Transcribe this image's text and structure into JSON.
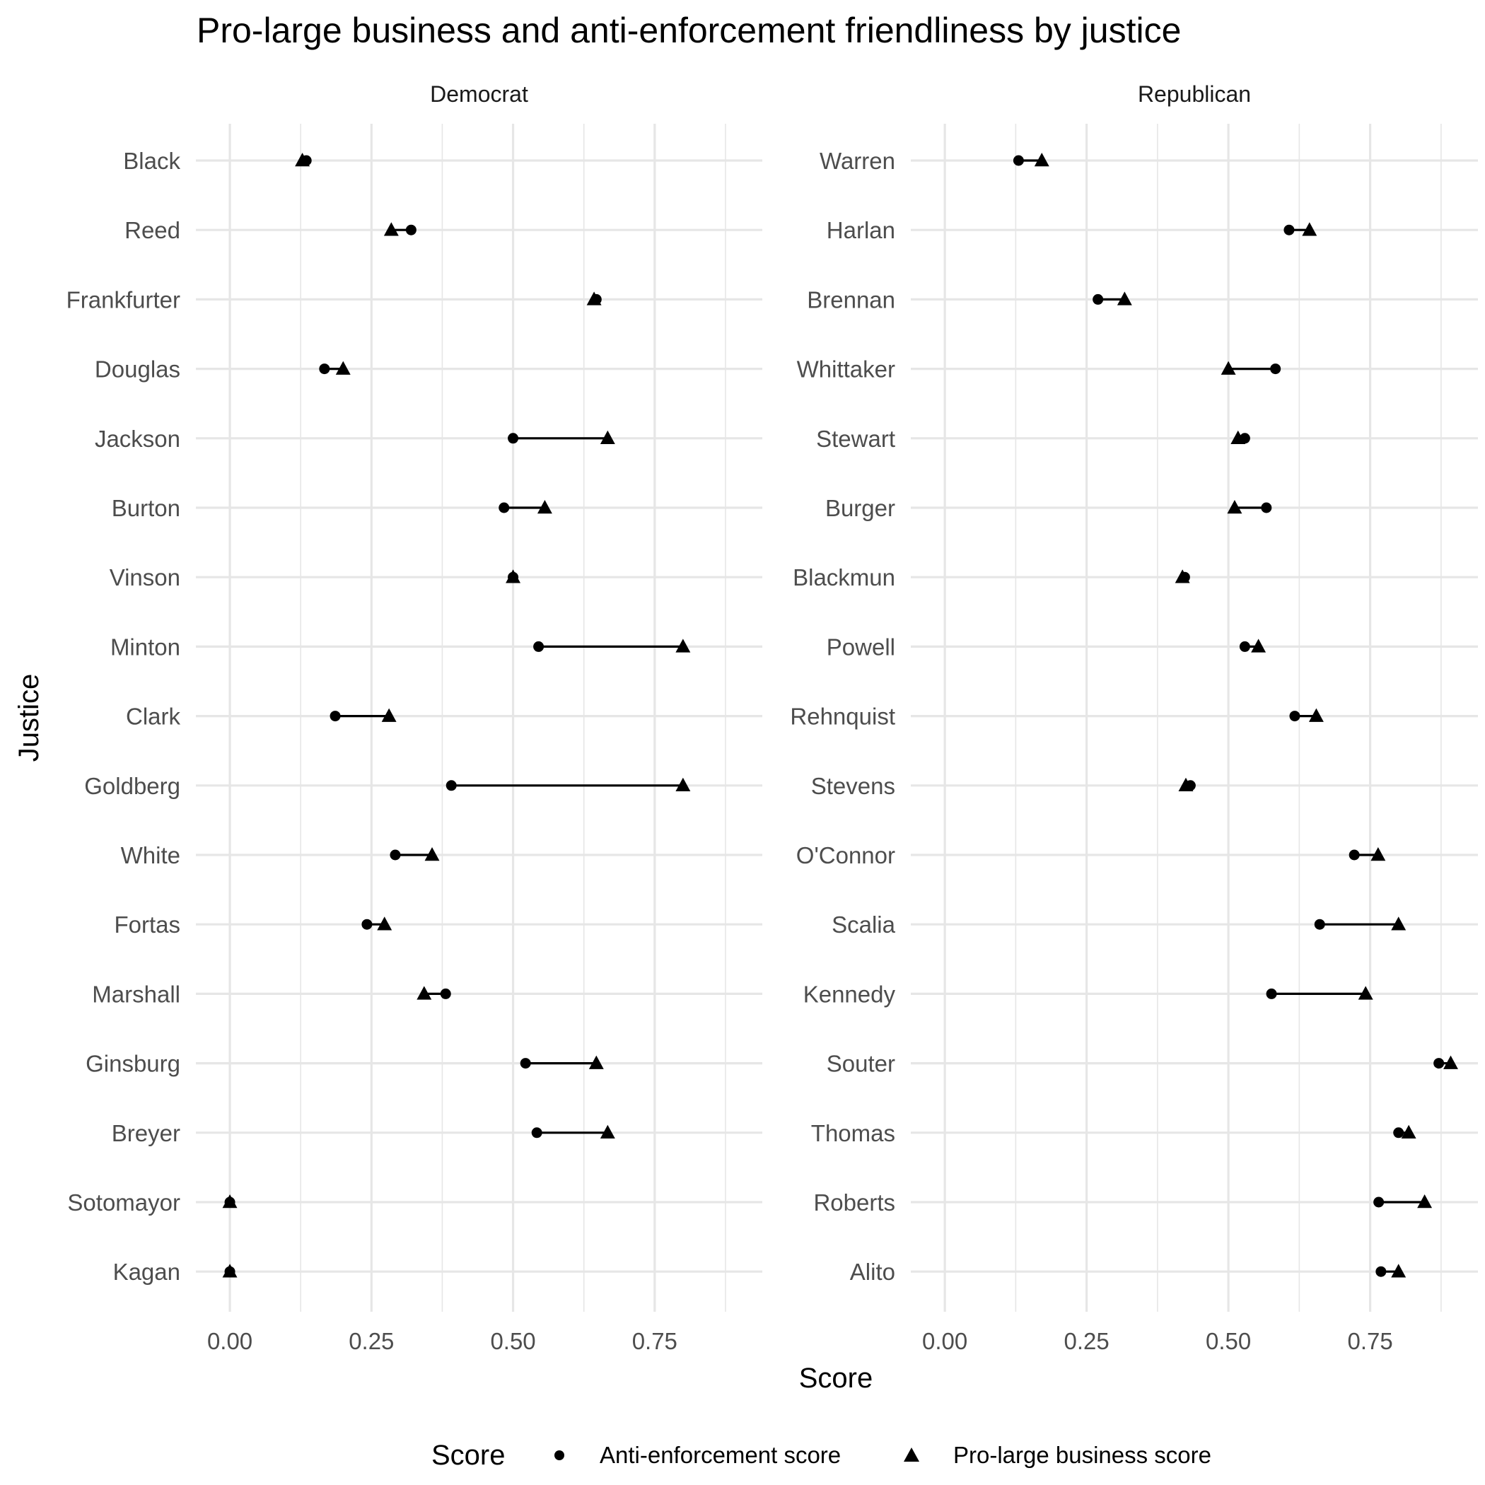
{
  "chart_data": {
    "type": "dot-range",
    "title": "Pro-large business and anti-enforcement friendliness by justice",
    "xlabel": "Score",
    "ylabel": "Justice",
    "xlim": [
      -0.06,
      0.94
    ],
    "x_ticks": [
      0,
      0.25,
      0.5,
      0.75
    ],
    "x_tick_labels": [
      "0.00",
      "0.25",
      "0.50",
      "0.75"
    ],
    "grid": true,
    "legend": {
      "title": "Score",
      "position": "bottom",
      "entries": [
        {
          "label": "Anti-enforcement score",
          "shape": "circle"
        },
        {
          "label": "Pro-large business score",
          "shape": "triangle"
        }
      ]
    },
    "panels": [
      {
        "label": "Democrat",
        "justices": [
          {
            "name": "Black",
            "anti_enforcement": 0.135,
            "pro_business": 0.128
          },
          {
            "name": "Reed",
            "anti_enforcement": 0.32,
            "pro_business": 0.285
          },
          {
            "name": "Frankfurter",
            "anti_enforcement": 0.647,
            "pro_business": 0.643
          },
          {
            "name": "Douglas",
            "anti_enforcement": 0.167,
            "pro_business": 0.2
          },
          {
            "name": "Jackson",
            "anti_enforcement": 0.5,
            "pro_business": 0.667
          },
          {
            "name": "Burton",
            "anti_enforcement": 0.484,
            "pro_business": 0.556
          },
          {
            "name": "Vinson",
            "anti_enforcement": 0.5,
            "pro_business": 0.5
          },
          {
            "name": "Minton",
            "anti_enforcement": 0.545,
            "pro_business": 0.8
          },
          {
            "name": "Clark",
            "anti_enforcement": 0.186,
            "pro_business": 0.281
          },
          {
            "name": "Goldberg",
            "anti_enforcement": 0.391,
            "pro_business": 0.8
          },
          {
            "name": "White",
            "anti_enforcement": 0.292,
            "pro_business": 0.357
          },
          {
            "name": "Fortas",
            "anti_enforcement": 0.242,
            "pro_business": 0.273
          },
          {
            "name": "Marshall",
            "anti_enforcement": 0.381,
            "pro_business": 0.343
          },
          {
            "name": "Ginsburg",
            "anti_enforcement": 0.522,
            "pro_business": 0.647
          },
          {
            "name": "Breyer",
            "anti_enforcement": 0.542,
            "pro_business": 0.667
          },
          {
            "name": "Sotomayor",
            "anti_enforcement": 0.0,
            "pro_business": 0.0
          },
          {
            "name": "Kagan",
            "anti_enforcement": 0.0,
            "pro_business": 0.0
          }
        ]
      },
      {
        "label": "Republican",
        "justices": [
          {
            "name": "Warren",
            "anti_enforcement": 0.13,
            "pro_business": 0.171
          },
          {
            "name": "Harlan",
            "anti_enforcement": 0.607,
            "pro_business": 0.643
          },
          {
            "name": "Brennan",
            "anti_enforcement": 0.27,
            "pro_business": 0.317
          },
          {
            "name": "Whittaker",
            "anti_enforcement": 0.583,
            "pro_business": 0.5
          },
          {
            "name": "Stewart",
            "anti_enforcement": 0.529,
            "pro_business": 0.517
          },
          {
            "name": "Burger",
            "anti_enforcement": 0.567,
            "pro_business": 0.511
          },
          {
            "name": "Blackmun",
            "anti_enforcement": 0.423,
            "pro_business": 0.419
          },
          {
            "name": "Powell",
            "anti_enforcement": 0.529,
            "pro_business": 0.553
          },
          {
            "name": "Rehnquist",
            "anti_enforcement": 0.617,
            "pro_business": 0.655
          },
          {
            "name": "Stevens",
            "anti_enforcement": 0.433,
            "pro_business": 0.425
          },
          {
            "name": "O'Connor",
            "anti_enforcement": 0.722,
            "pro_business": 0.764
          },
          {
            "name": "Scalia",
            "anti_enforcement": 0.661,
            "pro_business": 0.8
          },
          {
            "name": "Kennedy",
            "anti_enforcement": 0.576,
            "pro_business": 0.742
          },
          {
            "name": "Souter",
            "anti_enforcement": 0.871,
            "pro_business": 0.892
          },
          {
            "name": "Thomas",
            "anti_enforcement": 0.8,
            "pro_business": 0.818
          },
          {
            "name": "Roberts",
            "anti_enforcement": 0.765,
            "pro_business": 0.846
          },
          {
            "name": "Alito",
            "anti_enforcement": 0.769,
            "pro_business": 0.8
          }
        ]
      }
    ]
  }
}
